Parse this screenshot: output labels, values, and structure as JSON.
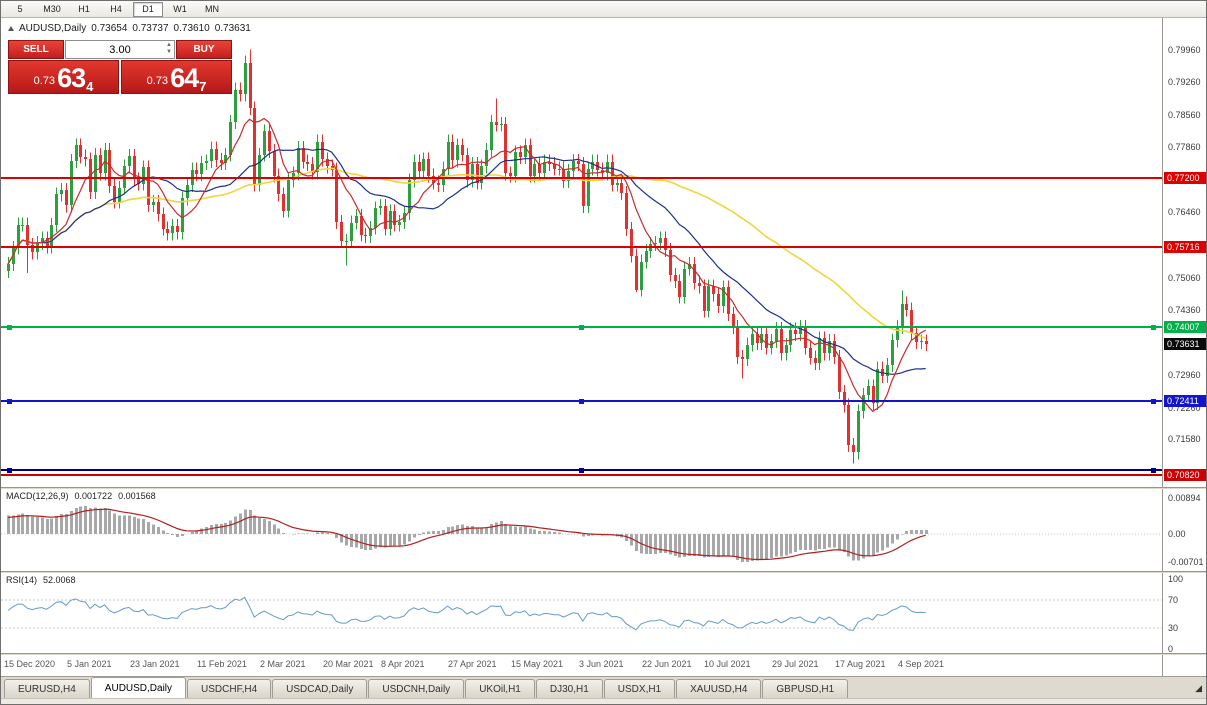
{
  "toolbar": {
    "periods": [
      "5",
      "M30",
      "H1",
      "H4",
      "D1",
      "W1",
      "MN"
    ],
    "active_period": "D1"
  },
  "header": {
    "symbol": "AUDUSD,Daily",
    "open": "0.73654",
    "high": "0.73737",
    "low": "0.73610",
    "close": "0.73631"
  },
  "trade_widget": {
    "sell_label": "SELL",
    "buy_label": "BUY",
    "volume": "3.00",
    "sell_price": {
      "prefix": "0.73",
      "big": "63",
      "sup": "4"
    },
    "buy_price": {
      "prefix": "0.73",
      "big": "64",
      "sup": "7"
    },
    "accent_color": "#d92b2b"
  },
  "price_scale": {
    "ticks": [
      "0.79960",
      "0.79260",
      "0.78560",
      "0.77860",
      "0.76460",
      "0.75060",
      "0.74360",
      "0.72960",
      "0.72260",
      "0.71580"
    ]
  },
  "hlines": [
    {
      "price": 0.772,
      "label": "0.77200",
      "color": "#dd0000",
      "width": 2,
      "handles": false
    },
    {
      "price": 0.75716,
      "label": "0.75716",
      "color": "#dd0000",
      "width": 2,
      "handles": false
    },
    {
      "price": 0.74007,
      "label": "0.74007",
      "color": "#00b14a",
      "width": 2,
      "handles": true
    },
    {
      "price": 0.72411,
      "label": "0.72411",
      "color": "#1414cc",
      "width": 2,
      "handles": true
    },
    {
      "price": 0.7093,
      "label": null,
      "color": "#000080",
      "width": 2,
      "handles": true
    },
    {
      "price": 0.7082,
      "label": "0.70820",
      "color": "#cc0000",
      "width": 2,
      "handles": false
    }
  ],
  "current_price": {
    "label": "0.73631",
    "value": 0.73631
  },
  "chart_data": {
    "type": "candlestick",
    "title": "AUDUSD Daily",
    "x_axis_dates": [
      [
        "15 Dec 2020",
        0
      ],
      [
        "5 Jan 2021",
        13
      ],
      [
        "23 Jan 2021",
        26
      ],
      [
        "11 Feb 2021",
        40
      ],
      [
        "2 Mar 2021",
        53
      ],
      [
        "20 Mar 2021",
        66
      ],
      [
        "8 Apr 2021",
        78
      ],
      [
        "27 Apr 2021",
        92
      ],
      [
        "15 May 2021",
        105
      ],
      [
        "3 Jun 2021",
        119
      ],
      [
        "22 Jun 2021",
        132
      ],
      [
        "10 Jul 2021",
        145
      ],
      [
        "29 Jul 2021",
        159
      ],
      [
        "17 Aug 2021",
        172
      ],
      [
        "4 Sep 2021",
        185
      ]
    ],
    "closes": [
      0.7535,
      0.757,
      0.762,
      0.762,
      0.7576,
      0.756,
      0.758,
      0.759,
      0.7573,
      0.7619,
      0.7685,
      0.7694,
      0.7661,
      0.7757,
      0.779,
      0.7766,
      0.776,
      0.769,
      0.777,
      0.773,
      0.778,
      0.7703,
      0.7669,
      0.7699,
      0.7745,
      0.7767,
      0.7717,
      0.7708,
      0.7743,
      0.7662,
      0.7668,
      0.7642,
      0.7611,
      0.7601,
      0.7617,
      0.7603,
      0.7676,
      0.7705,
      0.7738,
      0.7729,
      0.7752,
      0.7756,
      0.7783,
      0.7759,
      0.7752,
      0.777,
      0.784,
      0.791,
      0.79,
      0.7968,
      0.787,
      0.7706,
      0.777,
      0.782,
      0.7778,
      0.7725,
      0.7685,
      0.765,
      0.7715,
      0.773,
      0.7785,
      0.7755,
      0.775,
      0.7732,
      0.7798,
      0.776,
      0.7745,
      0.7738,
      0.7625,
      0.7585,
      0.7585,
      0.7624,
      0.7638,
      0.7598,
      0.7595,
      0.7613,
      0.7655,
      0.766,
      0.7611,
      0.7648,
      0.762,
      0.7625,
      0.7645,
      0.7715,
      0.7755,
      0.7734,
      0.776,
      0.7725,
      0.771,
      0.7705,
      0.774,
      0.7798,
      0.7758,
      0.779,
      0.777,
      0.7715,
      0.775,
      0.771,
      0.7745,
      0.778,
      0.784,
      0.7835,
      0.7836,
      0.773,
      0.7725,
      0.7775,
      0.7765,
      0.779,
      0.7725,
      0.775,
      0.773,
      0.7755,
      0.775,
      0.774,
      0.774,
      0.7713,
      0.7735,
      0.7757,
      0.775,
      0.766,
      0.774,
      0.7755,
      0.7738,
      0.773,
      0.7755,
      0.7706,
      0.771,
      0.7688,
      0.761,
      0.7553,
      0.748,
      0.754,
      0.7563,
      0.7578,
      0.758,
      0.759,
      0.7565,
      0.7512,
      0.7498,
      0.7465,
      0.7525,
      0.7535,
      0.7495,
      0.7487,
      0.7435,
      0.7487,
      0.747,
      0.7445,
      0.7485,
      0.7428,
      0.74,
      0.7335,
      0.7331,
      0.7362,
      0.7385,
      0.7365,
      0.7385,
      0.7355,
      0.737,
      0.7395,
      0.7343,
      0.7361,
      0.7394,
      0.7385,
      0.74,
      0.7355,
      0.7334,
      0.7322,
      0.7375,
      0.7343,
      0.737,
      0.7335,
      0.726,
      0.7231,
      0.7146,
      0.713,
      0.7218,
      0.7254,
      0.7272,
      0.7236,
      0.731,
      0.7294,
      0.7318,
      0.7371,
      0.74,
      0.745,
      0.7437,
      0.7387,
      0.7367,
      0.7369,
      0.7363
    ],
    "first_open": 0.752,
    "default_wick": 0.0015,
    "wick_overrides": {
      "4": {
        "low": 0.7516
      },
      "50": {
        "high": 0.7996
      },
      "70": {
        "low": 0.7532
      },
      "101": {
        "high": 0.7891
      },
      "130": {
        "low": 0.7475
      },
      "152": {
        "low": 0.7289
      },
      "175": {
        "low": 0.7106
      },
      "185": {
        "high": 0.7478
      }
    },
    "up_color": "#2f9e3f",
    "down_color": "#e03030",
    "moving_averages": [
      {
        "period": 55,
        "color": "#f2d43c",
        "width": 1.6
      },
      {
        "period": 21,
        "color": "#1c2f8c",
        "width": 1.2
      },
      {
        "period": 8,
        "color": "#cc2a2a",
        "width": 1.2
      }
    ]
  },
  "macd": {
    "name": "MACD(12,26,9)",
    "value": "0.001722",
    "signal": "0.001568",
    "fast": 12,
    "slow": 26,
    "signal_period": 9,
    "scale_labels": [
      "0.00894",
      "0.00",
      "-0.00701"
    ],
    "histogram_color": "#a8a8a8",
    "signal_color": "#b02020"
  },
  "rsi": {
    "name": "RSI(14)",
    "value": "52.0068",
    "period": 14,
    "levels": [
      70,
      30
    ],
    "scale_labels": [
      "100",
      "70",
      "30",
      "0"
    ],
    "line_color": "#6699cc"
  },
  "tabs": [
    {
      "label": "EURUSD,H4",
      "active": false
    },
    {
      "label": "AUDUSD,Daily",
      "active": true
    },
    {
      "label": "USDCHF,H4",
      "active": false
    },
    {
      "label": "USDCAD,Daily",
      "active": false
    },
    {
      "label": "USDCNH,Daily",
      "active": false
    },
    {
      "label": "UKOil,H1",
      "active": false
    },
    {
      "label": "DJ30,H1",
      "active": false
    },
    {
      "label": "USDX,H1",
      "active": false
    },
    {
      "label": "XAUUSD,H4",
      "active": false
    },
    {
      "label": "GBPUSD,H1",
      "active": false
    }
  ]
}
